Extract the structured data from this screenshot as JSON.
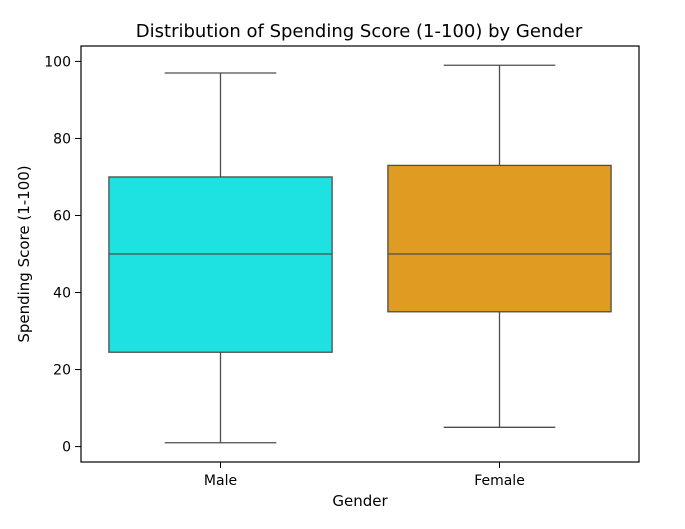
{
  "chart_data": {
    "type": "box",
    "title": "Distribution of Spending Score (1-100) by Gender",
    "xlabel": "Gender",
    "ylabel": "Spending Score (1-100)",
    "ylim": [
      -4,
      104
    ],
    "yticks": [
      0,
      20,
      40,
      60,
      80,
      100
    ],
    "grid": false,
    "categories": [
      "Male",
      "Female"
    ],
    "boxes": [
      {
        "category": "Male",
        "color": "#1ee1e1",
        "min": 1,
        "q1": 24.5,
        "median": 50,
        "q3": 70,
        "max": 97
      },
      {
        "category": "Female",
        "color": "#e09c22",
        "min": 5,
        "q1": 35,
        "median": 50,
        "q3": 73,
        "max": 99
      }
    ]
  }
}
